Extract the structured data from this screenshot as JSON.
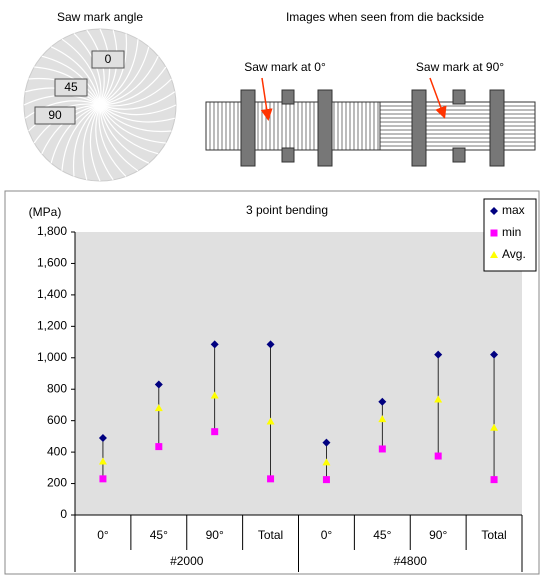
{
  "diagram": {
    "left_title": "Saw mark angle",
    "right_title": "Images when seen from die backside",
    "angle_labels": [
      "0",
      "45",
      "90"
    ],
    "image_labels": [
      "Saw mark at 0°",
      "Saw mark at 90°"
    ]
  },
  "chart_data": {
    "type": "hilo",
    "title": "3 point bending",
    "y_label": "(MPa)",
    "categories": [
      "0°",
      "45°",
      "90°",
      "Total",
      "0°",
      "45°",
      "90°",
      "Total"
    ],
    "groups": [
      "#2000",
      "#4800"
    ],
    "series": [
      {
        "name": "max",
        "color": "#000080",
        "marker": "diamond",
        "values": [
          490,
          830,
          1085,
          1085,
          460,
          720,
          1020,
          1020
        ]
      },
      {
        "name": "min",
        "color": "#ff00ff",
        "marker": "square",
        "values": [
          230,
          435,
          530,
          230,
          225,
          420,
          375,
          225
        ]
      },
      {
        "name": "Avg.",
        "color": "#ffff00",
        "marker": "triangle",
        "values": [
          340,
          680,
          760,
          595,
          335,
          610,
          735,
          555
        ]
      }
    ],
    "ylim": [
      0,
      1800
    ],
    "yticks": [
      0,
      200,
      400,
      600,
      800,
      {
        "value": 1000,
        "label": "1,000"
      },
      {
        "value": 1200,
        "label": "1,200"
      },
      {
        "value": 1400,
        "label": "1,400"
      },
      {
        "value": 1600,
        "label": "1,600"
      },
      {
        "value": 1800,
        "label": "1,800"
      }
    ],
    "grid": false,
    "legend": "upper right"
  }
}
